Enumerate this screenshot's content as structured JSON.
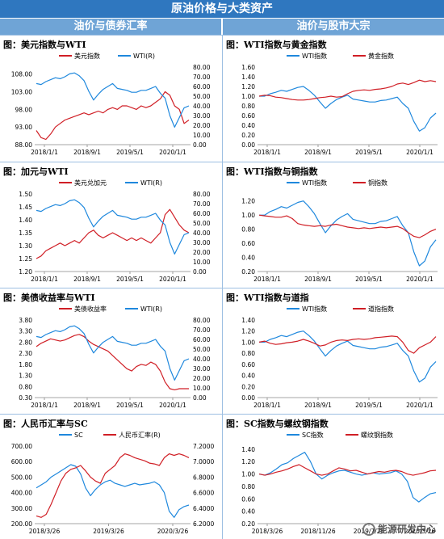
{
  "header": {
    "title": "原油价格与大类资产"
  },
  "sections": [
    {
      "label": "油价与债券汇率"
    },
    {
      "label": "油价与股市大宗"
    }
  ],
  "watermark": {
    "text": "能源研发中心"
  },
  "colors": {
    "red": "#d01f26",
    "blue": "#1f88dd"
  },
  "chart_data": [
    {
      "type": "line",
      "title": "图：美元指数与WTI",
      "x_ticks": [
        "2018/1/1",
        "2018/9/1",
        "2019/5/1",
        "2020/1/1"
      ],
      "y_left_ticks": [
        "88.00",
        "93.00",
        "98.00",
        "103.00",
        "108.00"
      ],
      "y_left_range": [
        88,
        110
      ],
      "y_right_ticks": [
        "0.00",
        "10.00",
        "20.00",
        "30.00",
        "40.00",
        "50.00",
        "60.00",
        "70.00",
        "80.00"
      ],
      "y_right_range": [
        0,
        80
      ],
      "series": [
        {
          "name": "美元指数",
          "axis": "left",
          "color": "#d01f26",
          "values": [
            92,
            90,
            89.5,
            91,
            93,
            94,
            95,
            95.5,
            96,
            96.5,
            97,
            96.5,
            97,
            97.5,
            97,
            98,
            98.5,
            98,
            99,
            99,
            98.5,
            98,
            99,
            98.5,
            99,
            100,
            101,
            103,
            102,
            99,
            98,
            94,
            95
          ]
        },
        {
          "name": "WTI(R)",
          "axis": "right",
          "color": "#1f88dd",
          "values": [
            63,
            62,
            65,
            67,
            69,
            68,
            70,
            73,
            74,
            71,
            66,
            55,
            46,
            52,
            57,
            60,
            63,
            58,
            57,
            56,
            54,
            54,
            56,
            56,
            58,
            60,
            53,
            48,
            30,
            18,
            28,
            38,
            40
          ]
        }
      ]
    },
    {
      "type": "line",
      "title": "图：WTI指数与黄金指数",
      "x_ticks": [
        "2018/1/1",
        "2018/9/1",
        "2019/5/1",
        "2020/1/1"
      ],
      "y_left_ticks": [
        "0.00",
        "0.20",
        "0.40",
        "0.60",
        "0.80",
        "1.00",
        "1.20",
        "1.40",
        "1.60"
      ],
      "y_left_range": [
        0,
        1.6
      ],
      "series": [
        {
          "name": "WTI指数",
          "axis": "left",
          "color": "#1f88dd",
          "values": [
            1.0,
            1.0,
            1.05,
            1.08,
            1.12,
            1.1,
            1.14,
            1.18,
            1.2,
            1.12,
            1.02,
            0.88,
            0.75,
            0.85,
            0.93,
            0.98,
            1.02,
            0.94,
            0.92,
            0.9,
            0.88,
            0.88,
            0.91,
            0.92,
            0.95,
            0.98,
            0.85,
            0.75,
            0.48,
            0.28,
            0.35,
            0.55,
            0.65
          ]
        },
        {
          "name": "黄金指数",
          "axis": "left",
          "color": "#d01f26",
          "values": [
            1.0,
            1.02,
            1.01,
            0.98,
            0.97,
            0.95,
            0.93,
            0.92,
            0.92,
            0.93,
            0.95,
            0.97,
            0.98,
            1.0,
            0.98,
            0.99,
            1.05,
            1.1,
            1.12,
            1.13,
            1.12,
            1.14,
            1.15,
            1.17,
            1.2,
            1.25,
            1.27,
            1.24,
            1.28,
            1.33,
            1.3,
            1.32,
            1.3
          ]
        }
      ]
    },
    {
      "type": "line",
      "title": "图：加元与WTI",
      "x_ticks": [
        "2018/1/1",
        "2018/9/1",
        "2019/5/1",
        "2020/1/1"
      ],
      "y_left_ticks": [
        "1.20",
        "1.25",
        "1.30",
        "1.35",
        "1.40",
        "1.45",
        "1.50"
      ],
      "y_left_range": [
        1.2,
        1.5
      ],
      "y_right_ticks": [
        "0.00",
        "10.00",
        "20.00",
        "30.00",
        "40.00",
        "50.00",
        "60.00",
        "70.00",
        "80.00"
      ],
      "y_right_range": [
        0,
        80
      ],
      "series": [
        {
          "name": "美元兑加元",
          "axis": "left",
          "color": "#d01f26",
          "values": [
            1.25,
            1.26,
            1.28,
            1.29,
            1.3,
            1.31,
            1.3,
            1.31,
            1.32,
            1.31,
            1.33,
            1.35,
            1.36,
            1.34,
            1.33,
            1.34,
            1.35,
            1.34,
            1.33,
            1.32,
            1.33,
            1.32,
            1.33,
            1.32,
            1.31,
            1.33,
            1.35,
            1.42,
            1.44,
            1.41,
            1.38,
            1.36,
            1.35
          ]
        },
        {
          "name": "WTI(R)",
          "axis": "right",
          "color": "#1f88dd",
          "values": [
            63,
            62,
            65,
            67,
            69,
            68,
            70,
            73,
            74,
            71,
            66,
            55,
            46,
            52,
            57,
            60,
            63,
            58,
            57,
            56,
            54,
            54,
            56,
            56,
            58,
            60,
            53,
            48,
            30,
            18,
            28,
            38,
            40
          ]
        }
      ]
    },
    {
      "type": "line",
      "title": "图：WTI指数与铜指数",
      "x_ticks": [
        "2018/1/1",
        "2018/9/1",
        "2019/5/1",
        "2020/1/1"
      ],
      "y_left_ticks": [
        "0.20",
        "0.40",
        "0.60",
        "0.80",
        "1.00",
        "1.20"
      ],
      "y_left_range": [
        0.2,
        1.3
      ],
      "series": [
        {
          "name": "WTI指数",
          "axis": "left",
          "color": "#1f88dd",
          "values": [
            1.0,
            1.0,
            1.05,
            1.08,
            1.12,
            1.1,
            1.14,
            1.18,
            1.2,
            1.12,
            1.02,
            0.88,
            0.75,
            0.85,
            0.93,
            0.98,
            1.02,
            0.94,
            0.92,
            0.9,
            0.88,
            0.88,
            0.91,
            0.92,
            0.95,
            0.98,
            0.85,
            0.75,
            0.48,
            0.28,
            0.35,
            0.55,
            0.65
          ]
        },
        {
          "name": "铜指数",
          "axis": "left",
          "color": "#d01f26",
          "values": [
            1.0,
            0.99,
            0.98,
            0.97,
            0.97,
            0.99,
            0.95,
            0.88,
            0.86,
            0.85,
            0.84,
            0.85,
            0.84,
            0.86,
            0.87,
            0.85,
            0.83,
            0.82,
            0.81,
            0.82,
            0.81,
            0.82,
            0.83,
            0.82,
            0.83,
            0.84,
            0.81,
            0.75,
            0.7,
            0.68,
            0.72,
            0.77,
            0.8
          ]
        }
      ]
    },
    {
      "type": "line",
      "title": "图：美债收益率与WTI",
      "x_ticks": [
        "2018/1/1",
        "2018/9/1",
        "2019/5/1",
        "2020/1/1"
      ],
      "y_left_ticks": [
        "0.30",
        "0.80",
        "1.30",
        "1.80",
        "2.30",
        "2.80",
        "3.30",
        "3.80"
      ],
      "y_left_range": [
        0.3,
        3.8
      ],
      "y_right_ticks": [
        "0.00",
        "10.00",
        "20.00",
        "30.00",
        "40.00",
        "50.00",
        "60.00",
        "70.00",
        "80.00"
      ],
      "y_right_range": [
        0,
        80
      ],
      "series": [
        {
          "name": "美债收益率",
          "axis": "left",
          "color": "#d01f26",
          "values": [
            2.6,
            2.75,
            2.85,
            2.95,
            2.9,
            2.85,
            2.9,
            3.0,
            3.1,
            3.15,
            3.05,
            2.85,
            2.7,
            2.6,
            2.5,
            2.4,
            2.2,
            2.0,
            1.8,
            1.6,
            1.5,
            1.7,
            1.8,
            1.75,
            1.9,
            1.8,
            1.5,
            1.0,
            0.7,
            0.65,
            0.7,
            0.7,
            0.7
          ]
        },
        {
          "name": "WTI(R)",
          "axis": "right",
          "color": "#1f88dd",
          "values": [
            63,
            62,
            65,
            67,
            69,
            68,
            70,
            73,
            74,
            71,
            66,
            55,
            46,
            52,
            57,
            60,
            63,
            58,
            57,
            56,
            54,
            54,
            56,
            56,
            58,
            60,
            53,
            48,
            30,
            18,
            28,
            38,
            40
          ]
        }
      ]
    },
    {
      "type": "line",
      "title": "图：WTI指数与道指",
      "x_ticks": [
        "2018/1/1",
        "2018/9/1",
        "2019/5/1",
        "2020/1/1"
      ],
      "y_left_ticks": [
        "0.00",
        "0.20",
        "0.40",
        "0.60",
        "0.80",
        "1.00",
        "1.20",
        "1.40"
      ],
      "y_left_range": [
        0,
        1.4
      ],
      "series": [
        {
          "name": "WTI指数",
          "axis": "left",
          "color": "#1f88dd",
          "values": [
            1.0,
            1.0,
            1.05,
            1.08,
            1.12,
            1.1,
            1.14,
            1.18,
            1.2,
            1.12,
            1.02,
            0.88,
            0.75,
            0.85,
            0.93,
            0.98,
            1.02,
            0.94,
            0.92,
            0.9,
            0.88,
            0.88,
            0.91,
            0.92,
            0.95,
            0.98,
            0.85,
            0.75,
            0.48,
            0.28,
            0.35,
            0.55,
            0.65
          ]
        },
        {
          "name": "道指指数",
          "axis": "left",
          "color": "#d01f26",
          "values": [
            1.0,
            1.02,
            0.98,
            0.96,
            0.97,
            0.99,
            1.0,
            1.02,
            1.05,
            1.02,
            0.98,
            0.93,
            0.95,
            1.0,
            1.03,
            1.04,
            1.03,
            1.05,
            1.06,
            1.05,
            1.06,
            1.08,
            1.09,
            1.1,
            1.11,
            1.1,
            1.0,
            0.85,
            0.8,
            0.9,
            0.95,
            1.0,
            1.1
          ]
        }
      ]
    },
    {
      "type": "line",
      "title": "图：人民币汇率与SC",
      "x_ticks": [
        "2018/3/26",
        "2019/3/26",
        "2020/3/26"
      ],
      "y_left_ticks": [
        "200.00",
        "300.00",
        "400.00",
        "500.00",
        "600.00",
        "700.00"
      ],
      "y_left_range": [
        200,
        700
      ],
      "y_right_ticks": [
        "6.2000",
        "6.4000",
        "6.6000",
        "6.8000",
        "7.0000",
        "7.2000"
      ],
      "y_right_range": [
        6.2,
        7.2
      ],
      "series": [
        {
          "name": "SC",
          "axis": "left",
          "color": "#1f88dd",
          "values": [
            430,
            450,
            470,
            500,
            520,
            540,
            560,
            580,
            570,
            520,
            430,
            380,
            420,
            450,
            470,
            480,
            460,
            450,
            440,
            450,
            460,
            450,
            455,
            460,
            470,
            450,
            400,
            280,
            240,
            290,
            310,
            320
          ]
        },
        {
          "name": "人民币汇率(R)",
          "axis": "right",
          "color": "#d01f26",
          "values": [
            6.3,
            6.28,
            6.32,
            6.45,
            6.6,
            6.75,
            6.85,
            6.9,
            6.92,
            6.95,
            6.88,
            6.8,
            6.75,
            6.72,
            6.85,
            6.9,
            6.95,
            7.05,
            7.1,
            7.08,
            7.05,
            7.03,
            7.01,
            6.98,
            6.97,
            6.95,
            7.05,
            7.1,
            7.08,
            7.1,
            7.08,
            7.05
          ]
        }
      ]
    },
    {
      "type": "line",
      "title": "图：SC指数与螺纹钢指数",
      "x_ticks": [
        "2018/3/26",
        "2018/11/26",
        "2019/7/26",
        "2020/3/26"
      ],
      "y_left_ticks": [
        "0.20",
        "0.40",
        "0.60",
        "0.80",
        "1.00",
        "1.20",
        "1.40"
      ],
      "y_left_range": [
        0.2,
        1.45
      ],
      "series": [
        {
          "name": "SC指数",
          "axis": "left",
          "color": "#1f88dd",
          "values": [
            1.0,
            0.98,
            1.02,
            1.08,
            1.15,
            1.18,
            1.25,
            1.3,
            1.35,
            1.2,
            1.0,
            0.92,
            0.98,
            1.02,
            1.05,
            1.06,
            1.03,
            1.0,
            0.98,
            1.0,
            1.02,
            1.0,
            1.01,
            1.02,
            1.05,
            1.0,
            0.88,
            0.62,
            0.55,
            0.62,
            0.68,
            0.7
          ]
        },
        {
          "name": "螺纹钢指数",
          "axis": "left",
          "color": "#d01f26",
          "values": [
            1.0,
            0.98,
            1.0,
            1.03,
            1.05,
            1.08,
            1.12,
            1.15,
            1.1,
            1.05,
            1.0,
            0.98,
            1.0,
            1.05,
            1.1,
            1.08,
            1.05,
            1.06,
            1.03,
            1.0,
            1.02,
            1.04,
            1.03,
            1.05,
            1.06,
            1.04,
            1.0,
            0.98,
            1.0,
            1.02,
            1.05,
            1.06
          ]
        }
      ]
    }
  ]
}
